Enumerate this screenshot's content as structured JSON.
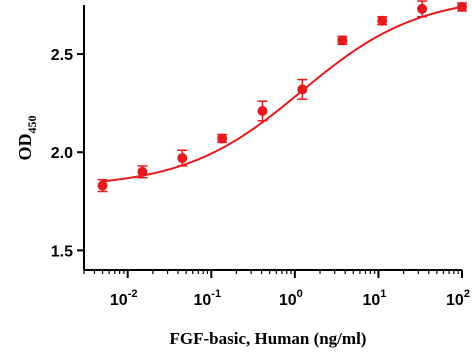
{
  "chart_data": {
    "type": "scatter",
    "title": "",
    "xlabel": "FGF-basic, Human (ng/ml)",
    "ylabel_main": "OD",
    "ylabel_sub": "450",
    "x_scale": "log",
    "xlim": [
      0.003,
      100
    ],
    "ylim": [
      1.4,
      2.75
    ],
    "x_ticks": [
      {
        "value": 0.01,
        "base": "10",
        "exp": "-2"
      },
      {
        "value": 0.1,
        "base": "10",
        "exp": "-1"
      },
      {
        "value": 1,
        "base": "10",
        "exp": "0"
      },
      {
        "value": 10,
        "base": "10",
        "exp": "1"
      },
      {
        "value": 100,
        "base": "10",
        "exp": "2"
      }
    ],
    "y_ticks": [
      {
        "value": 1.5,
        "label": "1.5"
      },
      {
        "value": 2.0,
        "label": "2.0"
      },
      {
        "value": 2.5,
        "label": "2.5"
      }
    ],
    "grid": false,
    "legend": "none",
    "color": "#e41a1c",
    "series": [
      {
        "points": [
          {
            "x": 0.005,
            "y": 1.83,
            "err": 0.03
          },
          {
            "x": 0.015,
            "y": 1.9,
            "err": 0.03
          },
          {
            "x": 0.045,
            "y": 1.97,
            "err": 0.04
          },
          {
            "x": 0.135,
            "y": 2.07,
            "err": 0.02
          },
          {
            "x": 0.41,
            "y": 2.21,
            "err": 0.05
          },
          {
            "x": 1.23,
            "y": 2.32,
            "err": 0.05
          },
          {
            "x": 3.7,
            "y": 2.57,
            "err": 0.02
          },
          {
            "x": 11.1,
            "y": 2.67,
            "err": 0.02
          },
          {
            "x": 33.3,
            "y": 2.73,
            "err": 0.04
          },
          {
            "x": 100,
            "y": 2.74,
            "err": 0.02
          }
        ],
        "fit": {
          "model": "4PL",
          "bottom": 1.82,
          "top": 2.8,
          "ec50": 1.2,
          "hill": 0.62
        }
      }
    ]
  }
}
